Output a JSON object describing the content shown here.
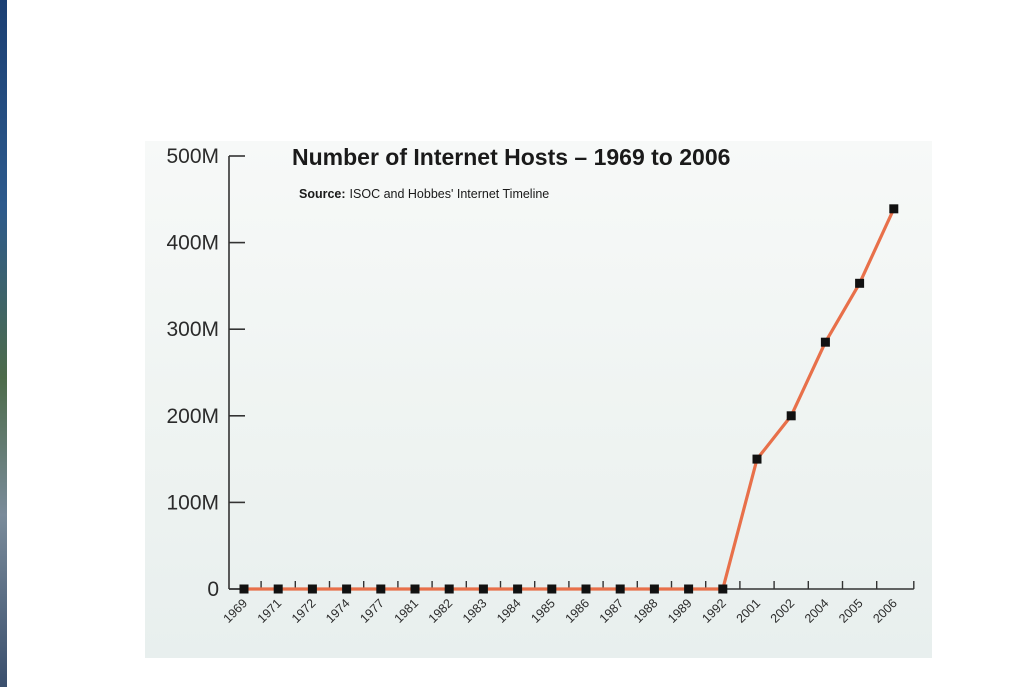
{
  "chart_data": {
    "type": "line",
    "title": "Number of Internet Hosts – 1969 to 2006",
    "source_label": "Source:",
    "source_text": "ISOC and Hobbes' Internet Timeline",
    "categories": [
      "1969",
      "1971",
      "1972",
      "1974",
      "1977",
      "1981",
      "1982",
      "1983",
      "1984",
      "1985",
      "1986",
      "1987",
      "1988",
      "1989",
      "1992",
      "2001",
      "2002",
      "2004",
      "2005",
      "2006"
    ],
    "values": [
      0,
      0,
      0,
      0,
      0,
      0,
      0,
      0,
      0,
      0,
      0,
      0,
      0,
      0,
      0,
      150,
      200,
      285,
      353,
      439
    ],
    "value_unit": "M",
    "y_ticks": [
      "0",
      "100M",
      "200M",
      "300M",
      "400M",
      "500M"
    ],
    "y_tick_values": [
      0,
      100,
      200,
      300,
      400,
      500
    ],
    "ylim": [
      0,
      500
    ],
    "xlabel": "",
    "ylabel": "",
    "grid": false,
    "colors": {
      "line": "#e8704a",
      "marker": "#111111",
      "axis": "#333333",
      "background": "#eef3f1"
    }
  }
}
